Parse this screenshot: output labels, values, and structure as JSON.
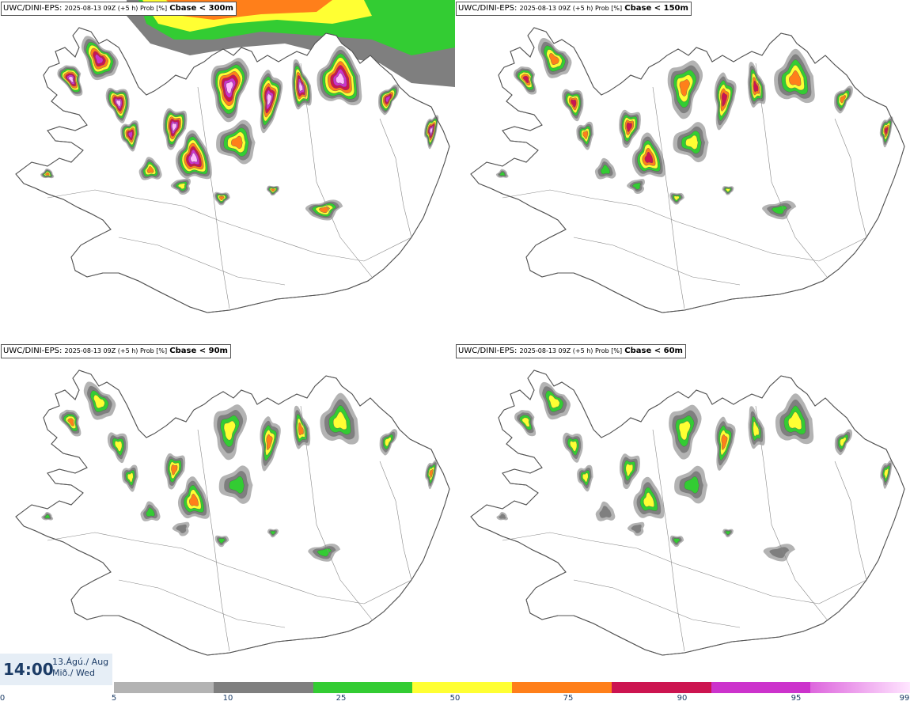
{
  "panels": [
    {
      "model": "UWC/DINI-EPS",
      "meta": "2025-08-13 09Z (+5 h) Prob [%]",
      "variable": "Cbase < 300m"
    },
    {
      "model": "UWC/DINI-EPS",
      "meta": "2025-08-13 09Z (+5 h) Prob [%]",
      "variable": "Cbase < 150m"
    },
    {
      "model": "UWC/DINI-EPS",
      "meta": "2025-08-13 09Z (+5 h) Prob [%]",
      "variable": "Cbase < 90m"
    },
    {
      "model": "UWC/DINI-EPS",
      "meta": "2025-08-13 09Z (+5 h) Prob [%]",
      "variable": "Cbase < 60m"
    }
  ],
  "time": {
    "hour": "14:00",
    "date_line1": "13.Ágú./ Aug",
    "date_line2": "Mið./ Wed"
  },
  "legend": {
    "ticks": [
      "0",
      "5",
      "10",
      "25",
      "50",
      "75",
      "90",
      "95",
      "99"
    ],
    "colors": [
      "#b3b3b3",
      "#7f7f7f",
      "#33cc33",
      "#ffff33",
      "#ff7f1a",
      "#cc1450",
      "#cc33cc",
      "#ffbbff"
    ]
  },
  "colors": {
    "outline": "#555555",
    "gray_light": "#b3b3b3",
    "gray_dark": "#7f7f7f",
    "green": "#33cc33",
    "yellow": "#ffff33",
    "orange": "#ff7f1a",
    "red": "#cc1450",
    "magenta": "#cc33cc",
    "pink": "#ffbbff"
  }
}
